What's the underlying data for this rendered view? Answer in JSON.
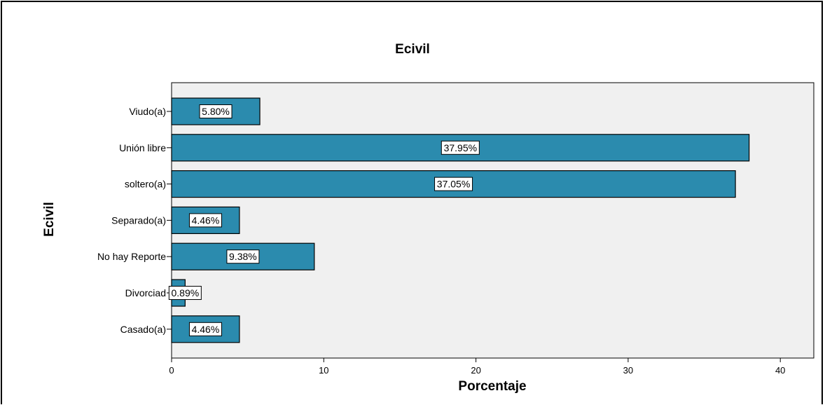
{
  "chart_data": {
    "type": "bar",
    "orientation": "horizontal",
    "title": "Ecivil",
    "xlabel": "Porcentaje",
    "ylabel": "Ecivil",
    "categories": [
      "Viudo(a)",
      "Unión libre",
      "soltero(a)",
      "Separado(a)",
      "No hay Reporte",
      "Divorciado",
      "Casado(a)"
    ],
    "category_display": [
      "Viudo(a)",
      "Unión libre",
      "soltero(a)",
      "Separado(a)",
      "No hay Reporte",
      "Divorciad",
      "Casado(a)"
    ],
    "values": [
      5.8,
      37.95,
      37.05,
      4.46,
      9.38,
      0.89,
      4.46
    ],
    "value_labels": [
      "5.80%",
      "37.95%",
      "37.05%",
      "4.46%",
      "9.38%",
      "0.89%",
      "4.46%"
    ],
    "xticks": [
      0,
      10,
      20,
      30,
      40
    ],
    "xlim": [
      0,
      42.2
    ],
    "grid": false,
    "legend": "none",
    "colors": {
      "bar": "#2b8bae",
      "bar_outline": "#000000",
      "plot_background": "#f0f0f0",
      "label_box": "#ffffff"
    }
  }
}
